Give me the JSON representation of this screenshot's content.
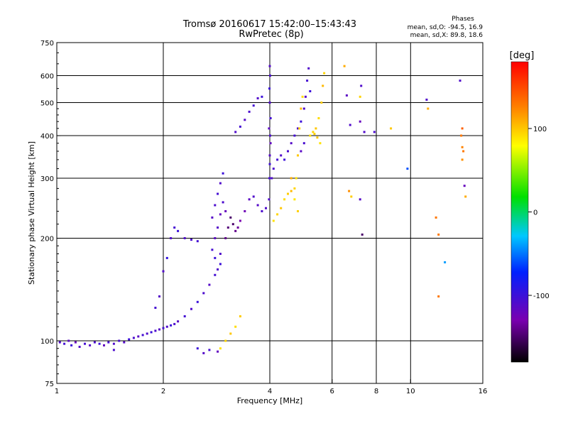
{
  "chart_data": {
    "type": "scatter",
    "title": "Tromsø 20160617 15:42:00–15:43:43",
    "subtitle": "RwPretec (8p)",
    "xlabel": "Frequency [MHz]",
    "ylabel": "Stationary phase Virtual Height [km]",
    "x_scale": "log2",
    "y_scale": "log",
    "xlim": [
      1,
      16
    ],
    "ylim": [
      75,
      750
    ],
    "x_ticks": [
      1,
      2,
      4,
      6,
      8,
      10,
      16
    ],
    "y_ticks": [
      75,
      100,
      200,
      300,
      400,
      500,
      600,
      750
    ],
    "x_grid": [
      2,
      4,
      6,
      8,
      10
    ],
    "y_grid": [
      100,
      200,
      300,
      400,
      500,
      600
    ],
    "stats": {
      "heading": "Phases",
      "line_o": "mean, sd,O:  -94.5, 16.9",
      "line_x": "mean, sd,X:  89.8, 18.6"
    },
    "colorbar": {
      "label": "[deg]",
      "range": [
        -180,
        180
      ],
      "ticks": [
        100,
        0,
        -100
      ]
    },
    "series": [
      {
        "points": [
          [
            1.02,
            99,
            -110
          ],
          [
            1.05,
            98,
            -105
          ],
          [
            1.08,
            100,
            -115
          ],
          [
            1.1,
            97,
            -100
          ],
          [
            1.13,
            99,
            -120
          ],
          [
            1.16,
            96,
            -110
          ],
          [
            1.2,
            98,
            -105
          ],
          [
            1.24,
            97,
            -112
          ],
          [
            1.28,
            99,
            -108
          ],
          [
            1.32,
            98,
            -100
          ],
          [
            1.36,
            97,
            -118
          ],
          [
            1.4,
            99,
            -104
          ],
          [
            1.45,
            98,
            -110
          ],
          [
            1.5,
            100,
            -106
          ],
          [
            1.55,
            99,
            -112
          ],
          [
            1.6,
            101,
            -100
          ],
          [
            1.65,
            102,
            -108
          ],
          [
            1.7,
            103,
            -114
          ],
          [
            1.75,
            104,
            -104
          ],
          [
            1.8,
            105,
            -110
          ],
          [
            1.85,
            106,
            -100
          ],
          [
            1.9,
            107,
            -108
          ],
          [
            1.95,
            108,
            -112
          ],
          [
            2.0,
            109,
            -104
          ],
          [
            2.05,
            110,
            -110
          ],
          [
            2.1,
            111,
            -100
          ],
          [
            2.15,
            112,
            -108
          ],
          [
            2.2,
            114,
            -114
          ],
          [
            2.3,
            118,
            -104
          ],
          [
            2.4,
            124,
            -110
          ],
          [
            2.5,
            130,
            -100
          ],
          [
            2.6,
            138,
            -108
          ],
          [
            2.7,
            146,
            -112
          ],
          [
            2.8,
            156,
            -104
          ],
          [
            2.85,
            162,
            -110
          ],
          [
            2.9,
            168,
            -100
          ],
          [
            1.9,
            125,
            -105
          ],
          [
            1.95,
            135,
            -112
          ],
          [
            2.0,
            160,
            -110
          ],
          [
            2.05,
            175,
            -95
          ],
          [
            2.1,
            200,
            -110
          ],
          [
            2.15,
            215,
            -105
          ],
          [
            2.2,
            210,
            -100
          ],
          [
            2.3,
            200,
            -110
          ],
          [
            2.4,
            198,
            -108
          ],
          [
            2.5,
            196,
            -104
          ],
          [
            2.75,
            230,
            -112
          ],
          [
            2.8,
            250,
            -108
          ],
          [
            2.85,
            270,
            -104
          ],
          [
            2.9,
            290,
            -110
          ],
          [
            2.95,
            310,
            -100
          ],
          [
            2.8,
            200,
            -115
          ],
          [
            2.85,
            215,
            -112
          ],
          [
            2.9,
            235,
            -118
          ],
          [
            2.95,
            255,
            -108
          ],
          [
            3.0,
            240,
            -120
          ],
          [
            2.75,
            185,
            -105
          ],
          [
            2.8,
            175,
            -100
          ],
          [
            2.9,
            180,
            -110
          ],
          [
            3.0,
            200,
            -140
          ],
          [
            3.05,
            215,
            -145
          ],
          [
            3.1,
            230,
            -150
          ],
          [
            3.15,
            220,
            -150
          ],
          [
            3.2,
            210,
            -140
          ],
          [
            3.25,
            215,
            -135
          ],
          [
            3.3,
            225,
            -130
          ],
          [
            3.4,
            240,
            -125
          ],
          [
            3.5,
            260,
            -115
          ],
          [
            3.6,
            265,
            -110
          ],
          [
            3.7,
            250,
            -112
          ],
          [
            3.8,
            240,
            -108
          ],
          [
            3.9,
            245,
            -110
          ],
          [
            3.2,
            410,
            -110
          ],
          [
            3.3,
            425,
            -105
          ],
          [
            3.4,
            445,
            -112
          ],
          [
            3.5,
            470,
            -108
          ],
          [
            3.6,
            490,
            -104
          ],
          [
            3.7,
            515,
            -110
          ],
          [
            3.8,
            520,
            -100
          ],
          [
            3.98,
            260,
            -110
          ],
          [
            3.99,
            300,
            -105
          ],
          [
            4.0,
            350,
            -112
          ],
          [
            4.01,
            400,
            -108
          ],
          [
            4.02,
            450,
            -104
          ],
          [
            4.0,
            500,
            -110
          ],
          [
            3.99,
            550,
            -100
          ],
          [
            4.01,
            600,
            -108
          ],
          [
            4.0,
            640,
            -112
          ],
          [
            3.98,
            420,
            -115
          ],
          [
            4.02,
            380,
            -118
          ],
          [
            4.0,
            330,
            -102
          ],
          [
            4.05,
            300,
            -110
          ],
          [
            4.1,
            320,
            -108
          ],
          [
            4.2,
            340,
            -104
          ],
          [
            4.3,
            350,
            -110
          ],
          [
            4.4,
            340,
            -100
          ],
          [
            4.5,
            360,
            -108
          ],
          [
            4.6,
            380,
            -112
          ],
          [
            4.7,
            400,
            -104
          ],
          [
            4.8,
            420,
            -110
          ],
          [
            4.9,
            440,
            -100
          ],
          [
            5.0,
            480,
            -108
          ],
          [
            5.05,
            520,
            -112
          ],
          [
            5.1,
            580,
            -104
          ],
          [
            5.15,
            630,
            -110
          ],
          [
            5.2,
            540,
            -100
          ],
          [
            5.0,
            380,
            -106
          ],
          [
            4.9,
            360,
            -114
          ],
          [
            4.1,
            225,
            90
          ],
          [
            4.2,
            235,
            95
          ],
          [
            4.3,
            245,
            100
          ],
          [
            4.4,
            260,
            92
          ],
          [
            4.5,
            270,
            98
          ],
          [
            4.6,
            275,
            105
          ],
          [
            4.7,
            280,
            95
          ],
          [
            4.75,
            300,
            90
          ],
          [
            4.8,
            350,
            100
          ],
          [
            4.85,
            420,
            95
          ],
          [
            4.9,
            480,
            105
          ],
          [
            4.95,
            520,
            92
          ],
          [
            4.6,
            300,
            110
          ],
          [
            4.7,
            260,
            88
          ],
          [
            4.8,
            240,
            96
          ],
          [
            5.2,
            400,
            90
          ],
          [
            5.3,
            410,
            95
          ],
          [
            5.4,
            420,
            100
          ],
          [
            5.5,
            450,
            92
          ],
          [
            5.6,
            500,
            98
          ],
          [
            5.65,
            560,
            105
          ],
          [
            5.7,
            610,
            95
          ],
          [
            5.55,
            380,
            90
          ],
          [
            5.45,
            395,
            100
          ],
          [
            5.35,
            405,
            96
          ],
          [
            2.9,
            95,
            90
          ],
          [
            3.0,
            100,
            95
          ],
          [
            3.1,
            105,
            100
          ],
          [
            3.2,
            110,
            92
          ],
          [
            3.3,
            118,
            98
          ],
          [
            2.6,
            92,
            -112
          ],
          [
            2.7,
            94,
            -105
          ],
          [
            2.85,
            93,
            -118
          ],
          [
            1.45,
            94,
            -108
          ],
          [
            2.5,
            95,
            -100
          ],
          [
            6.5,
            640,
            110
          ],
          [
            6.6,
            525,
            -115
          ],
          [
            6.7,
            275,
            120
          ],
          [
            6.75,
            430,
            -110
          ],
          [
            6.8,
            265,
            98
          ],
          [
            7.2,
            520,
            95
          ],
          [
            7.25,
            560,
            -110
          ],
          [
            7.2,
            440,
            -120
          ],
          [
            7.2,
            260,
            -112
          ],
          [
            7.3,
            205,
            -150
          ],
          [
            7.4,
            410,
            -110
          ],
          [
            7.9,
            410,
            -108
          ],
          [
            8.8,
            420,
            100
          ],
          [
            9.8,
            320,
            -60
          ],
          [
            11.1,
            510,
            -110
          ],
          [
            11.2,
            480,
            110
          ],
          [
            11.8,
            230,
            130
          ],
          [
            12.0,
            205,
            130
          ],
          [
            12.5,
            170,
            -40
          ],
          [
            13.8,
            580,
            -110
          ],
          [
            13.9,
            400,
            130
          ],
          [
            14.0,
            370,
            125
          ],
          [
            14.1,
            360,
            130
          ],
          [
            14.0,
            340,
            120
          ],
          [
            14.2,
            285,
            -120
          ],
          [
            14.3,
            265,
            110
          ],
          [
            12.0,
            135,
            130
          ],
          [
            14.0,
            420,
            140
          ]
        ]
      }
    ]
  }
}
